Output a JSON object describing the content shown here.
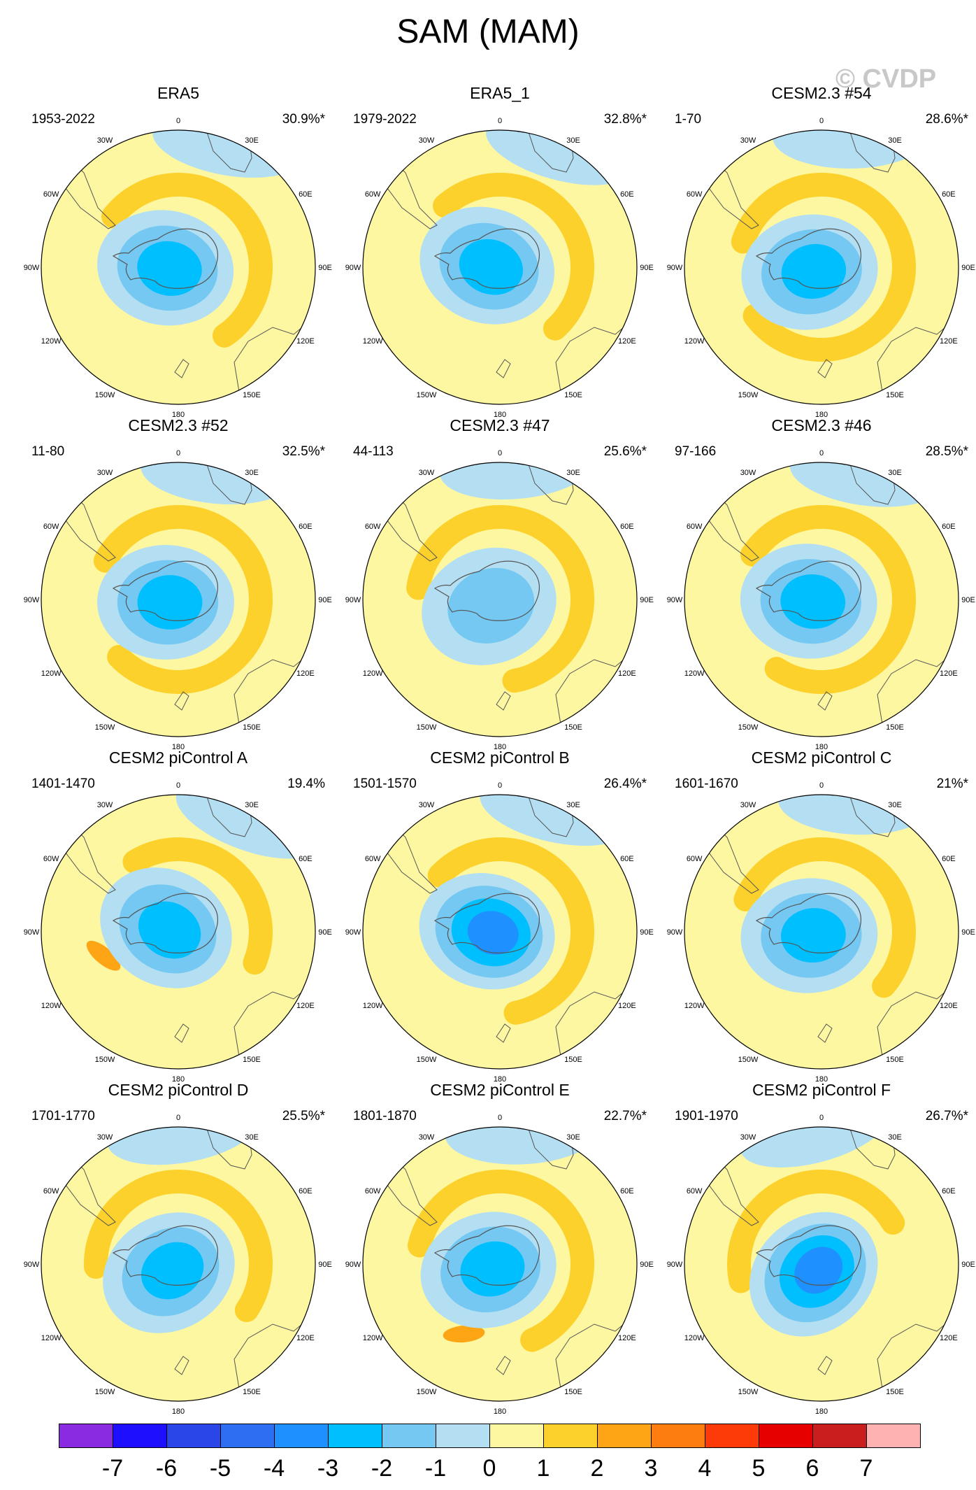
{
  "title": "SAM (MAM)",
  "watermark": "© CVDP",
  "colorbar": {
    "colors": [
      "#8a2be2",
      "#1e10ff",
      "#2a45e8",
      "#2d6ff0",
      "#1e90ff",
      "#00bfff",
      "#74c8f2",
      "#b4dff2",
      "#fdf7a2",
      "#fdd12b",
      "#fda514",
      "#fd7d10",
      "#fd3b08",
      "#e60000",
      "#c81e1e",
      "#ffb2b2"
    ],
    "labels": [
      "-7",
      "-6",
      "-5",
      "-4",
      "-3",
      "-2",
      "-1",
      "0",
      "1",
      "2",
      "3",
      "4",
      "5",
      "6",
      "7"
    ]
  },
  "lon_labels": [
    "0",
    "30E",
    "60E",
    "90E",
    "120E",
    "150E",
    "180",
    "150W",
    "120W",
    "90W",
    "60W",
    "30W"
  ],
  "chart_data": [
    {
      "type": "polar-contour",
      "title": "ERA5",
      "years": "1953-2022",
      "pct": "30.9%*",
      "center": -3,
      "ring": 0,
      "ring_extent": 0.55,
      "rotate": 20
    },
    {
      "type": "polar-contour",
      "title": "ERA5_1",
      "years": "1979-2022",
      "pct": "32.8%*",
      "center": -3,
      "ring": 1,
      "ring_extent": 0.5,
      "rotate": 30
    },
    {
      "type": "polar-contour",
      "title": "CESM2.3 #54",
      "years": "1-70",
      "pct": "28.6%*",
      "center": -3,
      "ring": 1,
      "ring_extent": 0.85,
      "rotate": 0
    },
    {
      "type": "polar-contour",
      "title": "CESM2.3 #52",
      "years": "11-80",
      "pct": "32.5%*",
      "center": -3,
      "ring": 1,
      "ring_extent": 0.8,
      "rotate": 10
    },
    {
      "type": "polar-contour",
      "title": "CESM2.3 #47",
      "years": "44-113",
      "pct": "25.6%*",
      "center": -2,
      "ring": 1,
      "ring_extent": 0.7,
      "rotate": -10
    },
    {
      "type": "polar-contour",
      "title": "CESM2.3 #46",
      "years": "97-166",
      "pct": "28.5%*",
      "center": -3,
      "ring": 1,
      "ring_extent": 0.75,
      "rotate": 15
    },
    {
      "type": "polar-contour",
      "title": "CESM2 piControl A",
      "years": "1401-1470",
      "pct": "19.4%",
      "center": -3,
      "ring": 2,
      "ring_extent": 0.4,
      "rotate": 40
    },
    {
      "type": "polar-contour",
      "title": "CESM2 piControl B",
      "years": "1501-1570",
      "pct": "26.4%*",
      "center": -4,
      "ring": 1,
      "ring_extent": 0.6,
      "rotate": 25
    },
    {
      "type": "polar-contour",
      "title": "CESM2 piControl C",
      "years": "1601-1670",
      "pct": "21%*",
      "center": -3,
      "ring": 1,
      "ring_extent": 0.55,
      "rotate": 5
    },
    {
      "type": "polar-contour",
      "title": "CESM2 piControl D",
      "years": "1701-1770",
      "pct": "25.5%*",
      "center": -3,
      "ring": 1,
      "ring_extent": 0.6,
      "rotate": -20
    },
    {
      "type": "polar-contour",
      "title": "CESM2 piControl E",
      "years": "1801-1870",
      "pct": "22.7%*",
      "center": -3,
      "ring": 2,
      "ring_extent": 0.65,
      "rotate": -5
    },
    {
      "type": "polar-contour",
      "title": "CESM2 piControl F",
      "years": "1901-1970",
      "pct": "26.7%*",
      "center": -4,
      "ring": 1,
      "ring_extent": 0.45,
      "rotate": -30
    }
  ]
}
